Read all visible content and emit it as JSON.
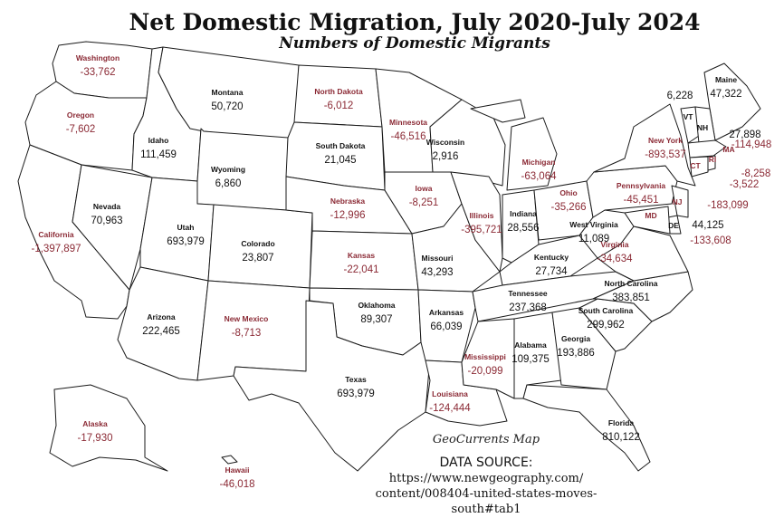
{
  "title": "Net Domestic Migration, July 2020-July 2024",
  "subtitle": "Numbers of Domestic Migrants",
  "credit": "GeoCurrents Map",
  "source": {
    "heading": "DATA SOURCE:",
    "line1": "https://www.newgeography.com/",
    "line2": "content/008404-united-states-moves-",
    "line3": "south#tab1"
  },
  "colors": {
    "positive": "#111111",
    "negative": "#8b2a35",
    "border": "#1a1a1a",
    "background": "#ffffff"
  },
  "states": [
    {
      "id": "wa",
      "name": "Washington",
      "value": "-33,762"
    },
    {
      "id": "or",
      "name": "Oregon",
      "value": "-7,602"
    },
    {
      "id": "ca",
      "name": "California",
      "value": "-1,397,897"
    },
    {
      "id": "nv",
      "name": "Nevada",
      "value": "70,963"
    },
    {
      "id": "id",
      "name": "Idaho",
      "value": "111,459"
    },
    {
      "id": "mt",
      "name": "Montana",
      "value": "50,720"
    },
    {
      "id": "wy",
      "name": "Wyoming",
      "value": "6,860"
    },
    {
      "id": "ut",
      "name": "Utah",
      "value": "693,979"
    },
    {
      "id": "co",
      "name": "Colorado",
      "value": "23,807"
    },
    {
      "id": "az",
      "name": "Arizona",
      "value": "222,465"
    },
    {
      "id": "nm",
      "name": "New Mexico",
      "value": "-8,713"
    },
    {
      "id": "nd",
      "name": "North Dakota",
      "value": "-6,012"
    },
    {
      "id": "sd",
      "name": "South Dakota",
      "value": "21,045"
    },
    {
      "id": "ne",
      "name": "Nebraska",
      "value": "-12,996"
    },
    {
      "id": "ks",
      "name": "Kansas",
      "value": "-22,041"
    },
    {
      "id": "ok",
      "name": "Oklahoma",
      "value": "89,307"
    },
    {
      "id": "tx",
      "name": "Texas",
      "value": "693,979"
    },
    {
      "id": "mn",
      "name": "Minnesota",
      "value": "-46,516"
    },
    {
      "id": "ia",
      "name": "Iowa",
      "value": "-8,251"
    },
    {
      "id": "mo",
      "name": "Missouri",
      "value": "43,293"
    },
    {
      "id": "ar",
      "name": "Arkansas",
      "value": "66,039"
    },
    {
      "id": "la",
      "name": "Louisiana",
      "value": "-124,444"
    },
    {
      "id": "wi",
      "name": "Wisconsin",
      "value": "2,916"
    },
    {
      "id": "il",
      "name": "Illinois",
      "value": "-395,721"
    },
    {
      "id": "mi",
      "name": "Michigan",
      "value": "-63,064"
    },
    {
      "id": "in",
      "name": "Indiana",
      "value": "28,556"
    },
    {
      "id": "oh",
      "name": "Ohio",
      "value": "-35,266"
    },
    {
      "id": "ky",
      "name": "Kentucky",
      "value": "27,734"
    },
    {
      "id": "tn",
      "name": "Tennessee",
      "value": "237,368"
    },
    {
      "id": "ms",
      "name": "Mississippi",
      "value": "-20,099"
    },
    {
      "id": "al",
      "name": "Alabama",
      "value": "109,375"
    },
    {
      "id": "ga",
      "name": "Georgia",
      "value": "193,886"
    },
    {
      "id": "fl",
      "name": "Florida",
      "value": "810,122"
    },
    {
      "id": "sc",
      "name": "South Carolina",
      "value": "299,962"
    },
    {
      "id": "nc",
      "name": "North Carolina",
      "value": "383,851"
    },
    {
      "id": "va",
      "name": "Virginia",
      "value": "-34,634"
    },
    {
      "id": "wv",
      "name": "West Virginia",
      "value": "11,089"
    },
    {
      "id": "pa",
      "name": "Pennsylvania",
      "value": "-45,451"
    },
    {
      "id": "ny",
      "name": "New York",
      "value": "-893,537"
    },
    {
      "id": "me",
      "name": "Maine",
      "value": "47,322"
    },
    {
      "id": "vt",
      "name": "VT",
      "value": "6,228"
    },
    {
      "id": "nh",
      "name": "NH",
      "value": "27,898"
    },
    {
      "id": "ma",
      "name": "MA",
      "value": "-114,948"
    },
    {
      "id": "ct",
      "name": "CT",
      "value": "-8,258"
    },
    {
      "id": "ri",
      "name": "RI",
      "value": "-3,522"
    },
    {
      "id": "nj",
      "name": "NJ",
      "value": "-183,099"
    },
    {
      "id": "de",
      "name": "DE",
      "value": "44,125"
    },
    {
      "id": "md",
      "name": "MD",
      "value": "-133,608"
    },
    {
      "id": "ak",
      "name": "Alaska",
      "value": "-17,930"
    },
    {
      "id": "hi",
      "name": "Hawaii",
      "value": "-46,018"
    }
  ]
}
